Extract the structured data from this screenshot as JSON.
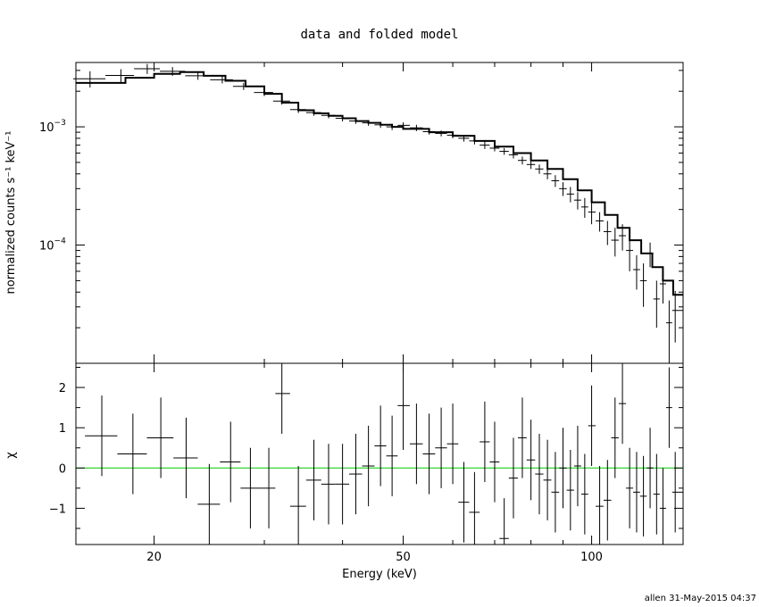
{
  "chart_data": {
    "type": "scatter",
    "title": "data and folded model",
    "footer": "allen 31-May-2015 04:37",
    "xlabel": "Energy (keV)",
    "x_scale": "log",
    "xlim": [
      15,
      140
    ],
    "x_ticks": [
      20,
      50,
      100
    ],
    "x_tick_labels": [
      "20",
      "50",
      "100"
    ],
    "colors": {
      "axes": "#000000",
      "data": "#000000",
      "model": "#000000",
      "zero_line": "#00cc00"
    },
    "panels": [
      {
        "name": "spectrum",
        "ylabel": "normalized counts s⁻¹ keV⁻¹",
        "y_scale": "log",
        "ylim": [
          1e-05,
          0.0035
        ],
        "y_ticks": [
          0.001,
          0.0001
        ],
        "y_tick_labels": [
          {
            "base": "10",
            "exp": "−3"
          },
          {
            "base": "10",
            "exp": "−4"
          }
        ],
        "data": {
          "x": [
            15.8,
            17.7,
            19.5,
            21.4,
            23.5,
            25.7,
            27.8,
            30.0,
            32.0,
            34.0,
            36.0,
            38.0,
            40.0,
            42.0,
            44.0,
            46.0,
            48.0,
            50.0,
            52.5,
            55.0,
            57.5,
            60.0,
            62.5,
            65.0,
            67.5,
            70.0,
            72.5,
            75.0,
            77.5,
            80.0,
            82.5,
            85.0,
            87.5,
            90.0,
            92.5,
            95.0,
            97.5,
            100.0,
            103.0,
            106.0,
            109.0,
            112.0,
            115.0,
            118.0,
            121.0,
            124.0,
            127.0,
            130.0,
            133.0,
            136.0
          ],
          "y": [
            0.00255,
            0.00272,
            0.0031,
            0.00295,
            0.0027,
            0.0025,
            0.0022,
            0.00195,
            0.00165,
            0.0014,
            0.00132,
            0.00125,
            0.00118,
            0.00112,
            0.00108,
            0.00104,
            0.001,
            0.00103,
            0.00098,
            0.00091,
            0.00088,
            0.00085,
            0.0008,
            0.00076,
            0.0007,
            0.00066,
            0.00062,
            0.00058,
            0.00052,
            0.00048,
            0.00044,
            0.0004,
            0.00035,
            0.0003,
            0.00027,
            0.00024,
            0.00021,
            0.00019,
            0.00016,
            0.00013,
            0.00011,
            0.00012,
            9e-05,
            6.2e-05,
            5e-05,
            8.5e-05,
            3.5e-05,
            4.7e-05,
            2.2e-05,
            2.8e-05
          ],
          "yerr": [
            0.0004,
            0.00035,
            0.0003,
            0.00025,
            0.0002,
            0.00017,
            0.00015,
            0.00013,
            0.00011,
            9e-05,
            8e-05,
            7e-05,
            7e-05,
            6e-05,
            6e-05,
            6e-05,
            6e-05,
            6e-05,
            6e-05,
            5e-05,
            5e-05,
            5e-05,
            5e-05,
            5e-05,
            5e-05,
            4e-05,
            4e-05,
            4e-05,
            4e-05,
            4e-05,
            4e-05,
            4e-05,
            4e-05,
            4e-05,
            4e-05,
            4e-05,
            4e-05,
            4e-05,
            3e-05,
            3e-05,
            3e-05,
            3e-05,
            3e-05,
            2e-05,
            2e-05,
            2e-05,
            1.5e-05,
            1.5e-05,
            1.2e-05,
            1.3e-05
          ]
        },
        "model": {
          "x": [
            15,
            18,
            20,
            22,
            24,
            26,
            28,
            30,
            32,
            34,
            36,
            38,
            40,
            42,
            44,
            46,
            48,
            50,
            55,
            60,
            65,
            70,
            75,
            80,
            85,
            90,
            95,
            100,
            105,
            110,
            115,
            120,
            125,
            130,
            135,
            140
          ],
          "y": [
            0.00235,
            0.0026,
            0.0028,
            0.0029,
            0.0027,
            0.00245,
            0.0022,
            0.0019,
            0.0016,
            0.00138,
            0.0013,
            0.00124,
            0.00118,
            0.00112,
            0.00108,
            0.00104,
            0.001,
            0.00096,
            0.0009,
            0.00084,
            0.00076,
            0.00068,
            0.0006,
            0.00052,
            0.00044,
            0.00036,
            0.00029,
            0.00023,
            0.00018,
            0.00014,
            0.00011,
            8.5e-05,
            6.5e-05,
            5e-05,
            3.8e-05,
            2.8e-05
          ]
        }
      },
      {
        "name": "residuals",
        "ylabel": "χ",
        "y_scale": "linear",
        "ylim": [
          -1.9,
          2.6
        ],
        "y_ticks": [
          2,
          1,
          0,
          -1
        ],
        "y_tick_labels": [
          "2",
          "1",
          "0",
          "−1"
        ],
        "zero_line": 0,
        "data": {
          "x": [
            16.5,
            18.5,
            20.5,
            22.5,
            24.5,
            26.5,
            28.5,
            30.5,
            32.0,
            34.0,
            36.0,
            38.0,
            40.0,
            42.0,
            44.0,
            46.0,
            48.0,
            50.0,
            52.5,
            55.0,
            57.5,
            60.0,
            62.5,
            65.0,
            67.5,
            70.0,
            72.5,
            75.0,
            77.5,
            80.0,
            82.5,
            85.0,
            87.5,
            90.0,
            92.5,
            95.0,
            97.5,
            100.0,
            103.0,
            106.0,
            109.0,
            112.0,
            115.0,
            118.0,
            121.0,
            124.0,
            127.0,
            130.0,
            133.0,
            136.0
          ],
          "y": [
            0.8,
            0.35,
            0.75,
            0.25,
            -0.9,
            0.15,
            -0.5,
            -0.5,
            1.85,
            -0.95,
            -0.3,
            -0.4,
            -0.4,
            -0.15,
            0.05,
            0.55,
            0.3,
            1.55,
            0.6,
            0.35,
            0.5,
            0.6,
            -0.85,
            -1.1,
            0.65,
            0.15,
            -1.75,
            -0.25,
            0.75,
            0.2,
            -0.15,
            -0.3,
            -0.6,
            0.0,
            -0.55,
            0.05,
            -0.65,
            1.05,
            -0.95,
            -0.8,
            0.75,
            1.6,
            -0.5,
            -0.6,
            -0.7,
            0.0,
            -0.65,
            -1.0,
            1.5,
            -0.6
          ],
          "yerr": [
            1,
            1,
            1,
            1,
            1,
            1,
            1,
            1,
            1,
            1,
            1,
            1,
            1,
            1,
            1,
            1,
            1,
            1.1,
            1,
            1,
            1,
            1,
            1,
            1,
            1,
            1,
            1,
            1,
            1,
            1,
            1,
            1,
            1,
            1,
            1,
            1,
            1,
            1,
            1,
            1,
            1,
            1,
            1,
            1,
            1,
            1,
            1,
            1,
            1,
            1
          ]
        }
      }
    ]
  }
}
